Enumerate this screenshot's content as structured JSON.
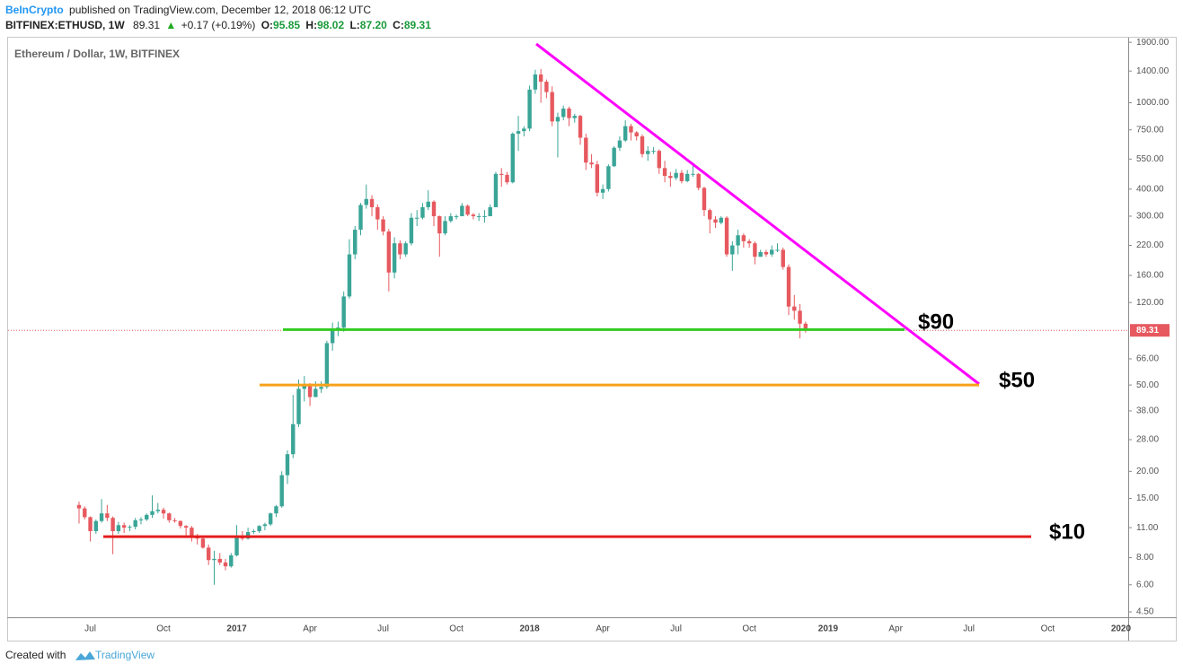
{
  "header": {
    "publisher": "BeInCrypto",
    "published": "published on TradingView.com, December 12, 2018 06:12 UTC",
    "symbol": "BITFINEX:ETHUSD, 1W",
    "price": "89.31",
    "change": "+0.17 (+0.19%)",
    "ohlc": [
      {
        "label": "O:",
        "value": "95.85"
      },
      {
        "label": "H:",
        "value": "98.02"
      },
      {
        "label": "L:",
        "value": "87.20"
      },
      {
        "label": "C:",
        "value": "89.31"
      }
    ]
  },
  "footer": {
    "created": "Created with",
    "brand": "TradingView"
  },
  "chart_data": {
    "type": "candlestick",
    "subtitle": "Ethereum / Dollar, 1W, BITFINEX",
    "log_scale": true,
    "up_color": "#3aa597",
    "down_color": "#e6595f",
    "ylim": [
      4.25,
      1995
    ],
    "yticks": [
      {
        "value": 1900,
        "label": "1900.00"
      },
      {
        "value": 1400,
        "label": "1400.00"
      },
      {
        "value": 1000,
        "label": "1000.00"
      },
      {
        "value": 750,
        "label": "750.00"
      },
      {
        "value": 550,
        "label": "550.00"
      },
      {
        "value": 400,
        "label": "400.00"
      },
      {
        "value": 300,
        "label": "300.00"
      },
      {
        "value": 220,
        "label": "220.00"
      },
      {
        "value": 160,
        "label": "160.00"
      },
      {
        "value": 120,
        "label": "120.00"
      },
      {
        "value": 66,
        "label": "66.00"
      },
      {
        "value": 50,
        "label": "50.00"
      },
      {
        "value": 38,
        "label": "38.00"
      },
      {
        "value": 28,
        "label": "28.00"
      },
      {
        "value": 20,
        "label": "20.00"
      },
      {
        "value": 15,
        "label": "15.00"
      },
      {
        "value": 11,
        "label": "11.00"
      },
      {
        "value": 8,
        "label": "8.00"
      },
      {
        "value": 6,
        "label": "6.00"
      },
      {
        "value": 4.5,
        "label": "4.50"
      }
    ],
    "last_price": {
      "value": 89.31,
      "label": "89.31",
      "color": "#e6595f"
    },
    "levels": [
      {
        "value": 90,
        "label": "$90",
        "color": "#33cc22"
      },
      {
        "value": 50,
        "label": "$50",
        "color": "#f7a21b"
      },
      {
        "value": 10,
        "label": "$10",
        "color": "#e41d1d"
      }
    ],
    "trendline_color": "#ff00ff",
    "categories": [
      null,
      null,
      "Jul",
      null,
      null,
      null,
      null,
      null,
      null,
      null,
      null,
      null,
      null,
      null,
      null,
      "Oct",
      null,
      null,
      null,
      null,
      null,
      null,
      null,
      null,
      null,
      null,
      null,
      null,
      "2017",
      null,
      null,
      null,
      null,
      null,
      null,
      null,
      null,
      null,
      null,
      null,
      null,
      "Apr",
      null,
      null,
      null,
      null,
      null,
      null,
      null,
      null,
      null,
      null,
      null,
      null,
      "Jul",
      null,
      null,
      null,
      null,
      null,
      null,
      null,
      null,
      null,
      null,
      null,
      null,
      "Oct",
      null,
      null,
      null,
      null,
      null,
      null,
      null,
      null,
      null,
      null,
      null,
      null,
      "2018",
      null,
      null,
      null,
      null,
      null,
      null,
      null,
      null,
      null,
      null,
      null,
      null,
      "Apr",
      null,
      null,
      null,
      null,
      null,
      null,
      null,
      null,
      null,
      null,
      null,
      null,
      "Jul",
      null,
      null,
      null,
      null,
      null,
      null,
      null,
      null,
      null,
      null,
      null,
      null,
      "Oct",
      null,
      null,
      null,
      null,
      null,
      null,
      null,
      null,
      null,
      null,
      null,
      null,
      null,
      "2019",
      null,
      null,
      null,
      null,
      null,
      null,
      null,
      null,
      null,
      null,
      null,
      "Apr",
      null,
      null,
      null,
      null,
      null,
      null,
      null,
      null,
      null,
      null,
      null,
      null,
      "Jul",
      null,
      null,
      null,
      null,
      null,
      null,
      null,
      null,
      null,
      null,
      null,
      null,
      null,
      "Oct",
      null,
      null,
      null,
      null,
      null,
      null,
      null,
      null,
      null,
      null,
      null,
      null,
      "2020"
    ],
    "open": [
      14.0,
      13.5,
      12.3,
      10.6,
      11.8,
      12.8,
      12.2,
      10.6,
      11.3,
      11.0,
      11.1,
      11.9,
      12.0,
      12.6,
      13.1,
      13.3,
      12.8,
      11.9,
      11.8,
      11.2,
      11.0,
      10.1,
      9.8,
      8.9,
      7.8,
      7.9,
      7.6,
      7.3,
      8.2,
      10.0,
      9.8,
      10.5,
      10.6,
      11.2,
      11.4,
      12.8,
      13.8,
      19.2,
      24,
      33,
      48,
      50,
      44,
      48,
      49,
      78,
      89,
      92,
      128,
      200,
      260,
      338,
      360,
      330,
      290,
      255,
      165,
      225,
      200,
      225,
      295,
      295,
      330,
      350,
      300,
      250,
      285,
      300,
      300,
      335,
      305,
      300,
      300,
      300,
      330,
      470,
      465,
      430,
      720,
      740,
      760,
      1150,
      1350,
      1250,
      1120,
      820,
      860,
      940,
      850,
      870,
      690,
      530,
      520,
      385,
      400,
      510,
      620,
      670,
      780,
      730,
      700,
      580,
      600,
      600,
      500,
      460,
      450,
      475,
      435,
      470,
      470,
      405,
      320,
      290,
      280,
      295,
      200,
      220,
      245,
      230,
      225,
      195,
      205,
      200,
      210,
      210,
      175,
      115,
      110,
      95.85,
      null,
      null,
      null,
      null,
      null,
      null,
      null,
      null,
      null,
      null,
      null,
      null,
      null,
      null,
      null,
      null,
      null,
      null,
      null,
      null,
      null,
      null,
      null,
      null,
      null,
      null,
      null,
      null,
      null,
      null,
      null,
      null,
      null,
      null,
      null,
      null,
      null,
      null,
      null,
      null,
      null,
      null,
      null,
      null,
      null,
      null,
      null,
      null,
      null,
      null,
      null,
      null,
      null,
      null,
      null,
      null
    ],
    "high": [
      14.5,
      13.8,
      12.4,
      12.0,
      14.9,
      14.0,
      12.4,
      11.7,
      11.6,
      11.3,
      12.2,
      12.3,
      12.8,
      15.5,
      14.3,
      13.6,
      12.9,
      12.2,
      11.9,
      11.3,
      11.2,
      10.3,
      10.0,
      9.2,
      8.6,
      8.4,
      7.9,
      8.4,
      11.3,
      10.6,
      11.0,
      10.8,
      11.3,
      11.6,
      12.9,
      14.0,
      20,
      25,
      45,
      53,
      55,
      51,
      52,
      52,
      80,
      97,
      98,
      135,
      235,
      270,
      345,
      420,
      375,
      340,
      300,
      262,
      240,
      232,
      230,
      310,
      320,
      345,
      395,
      355,
      302,
      300,
      310,
      305,
      345,
      340,
      310,
      310,
      320,
      340,
      480,
      500,
      480,
      730,
      870,
      780,
      1200,
      1420,
      1430,
      1280,
      1190,
      900,
      970,
      960,
      890,
      880,
      720,
      580,
      540,
      420,
      520,
      630,
      700,
      830,
      800,
      740,
      715,
      630,
      625,
      610,
      540,
      480,
      495,
      490,
      490,
      520,
      475,
      410,
      325,
      300,
      300,
      300,
      230,
      260,
      250,
      235,
      230,
      210,
      210,
      220,
      225,
      215,
      180,
      130,
      118,
      98.02,
      null,
      null,
      null,
      null,
      null,
      null,
      null,
      null,
      null,
      null,
      null,
      null,
      null,
      null,
      null,
      null,
      null,
      null,
      null,
      null,
      null,
      null,
      null,
      null,
      null,
      null,
      null,
      null,
      null,
      null,
      null,
      null,
      null,
      null,
      null,
      null,
      null,
      null,
      null,
      null,
      null,
      null,
      null,
      null,
      null,
      null,
      null,
      null,
      null,
      null,
      null,
      null,
      null,
      null,
      null,
      null
    ],
    "low": [
      11.5,
      12.0,
      9.5,
      10.3,
      11.6,
      11.8,
      8.3,
      10.3,
      10.4,
      10.6,
      10.8,
      11.4,
      11.8,
      12.2,
      12.8,
      12.1,
      11.6,
      11.6,
      10.9,
      10.1,
      9.5,
      9.2,
      8.8,
      7.4,
      6.0,
      7.4,
      7.0,
      7.2,
      8.1,
      9.6,
      9.7,
      10.3,
      10.4,
      10.7,
      11.2,
      12.3,
      13.6,
      17.5,
      23,
      32,
      42,
      40,
      44,
      46,
      48,
      72,
      84,
      88,
      125,
      190,
      245,
      325,
      300,
      260,
      245,
      135,
      155,
      190,
      195,
      220,
      270,
      290,
      320,
      270,
      195,
      245,
      280,
      290,
      300,
      300,
      290,
      285,
      280,
      300,
      330,
      410,
      420,
      425,
      600,
      700,
      740,
      1100,
      1000,
      1050,
      780,
      560,
      830,
      780,
      810,
      640,
      490,
      500,
      370,
      360,
      390,
      505,
      600,
      660,
      670,
      670,
      560,
      540,
      580,
      470,
      430,
      410,
      440,
      425,
      430,
      455,
      395,
      300,
      250,
      265,
      275,
      195,
      168,
      200,
      215,
      215,
      180,
      195,
      195,
      195,
      205,
      170,
      105,
      100,
      82,
      87.2,
      null,
      null,
      null,
      null,
      null,
      null,
      null,
      null,
      null,
      null,
      null,
      null,
      null,
      null,
      null,
      null,
      null,
      null,
      null,
      null,
      null,
      null,
      null,
      null,
      null,
      null,
      null,
      null,
      null,
      null,
      null,
      null,
      null,
      null,
      null,
      null,
      null,
      null,
      null,
      null,
      null,
      null,
      null,
      null,
      null,
      null,
      null,
      null,
      null,
      null,
      null,
      null,
      null,
      null,
      null,
      null
    ],
    "close": [
      13.5,
      12.3,
      10.6,
      11.8,
      12.8,
      12.2,
      10.6,
      11.3,
      11.0,
      11.1,
      11.9,
      12.0,
      12.6,
      13.1,
      13.3,
      12.8,
      11.9,
      11.8,
      11.2,
      11.0,
      10.1,
      9.8,
      8.9,
      7.8,
      7.9,
      7.6,
      7.3,
      8.2,
      10.0,
      9.8,
      10.5,
      10.6,
      11.2,
      11.4,
      12.8,
      13.8,
      19.2,
      24,
      33,
      48,
      50,
      44,
      48,
      49,
      78,
      89,
      92,
      128,
      200,
      260,
      338,
      360,
      330,
      290,
      255,
      165,
      225,
      200,
      225,
      295,
      295,
      330,
      350,
      300,
      250,
      285,
      300,
      300,
      335,
      305,
      300,
      300,
      300,
      330,
      470,
      465,
      430,
      720,
      740,
      760,
      1150,
      1350,
      1250,
      1120,
      820,
      860,
      940,
      850,
      870,
      690,
      530,
      520,
      385,
      400,
      510,
      620,
      670,
      780,
      730,
      700,
      580,
      600,
      600,
      500,
      460,
      450,
      475,
      435,
      470,
      470,
      405,
      320,
      290,
      280,
      295,
      200,
      220,
      245,
      230,
      225,
      195,
      205,
      200,
      210,
      210,
      175,
      115,
      110,
      95.85,
      89.31,
      null,
      null,
      null,
      null,
      null,
      null,
      null,
      null,
      null,
      null,
      null,
      null,
      null,
      null,
      null,
      null,
      null,
      null,
      null,
      null,
      null,
      null,
      null,
      null,
      null,
      null,
      null,
      null,
      null,
      null,
      null,
      null,
      null,
      null,
      null,
      null,
      null,
      null,
      null,
      null,
      null,
      null,
      null,
      null,
      null,
      null,
      null,
      null,
      null,
      null,
      null,
      null,
      null,
      null,
      null,
      null
    ]
  }
}
